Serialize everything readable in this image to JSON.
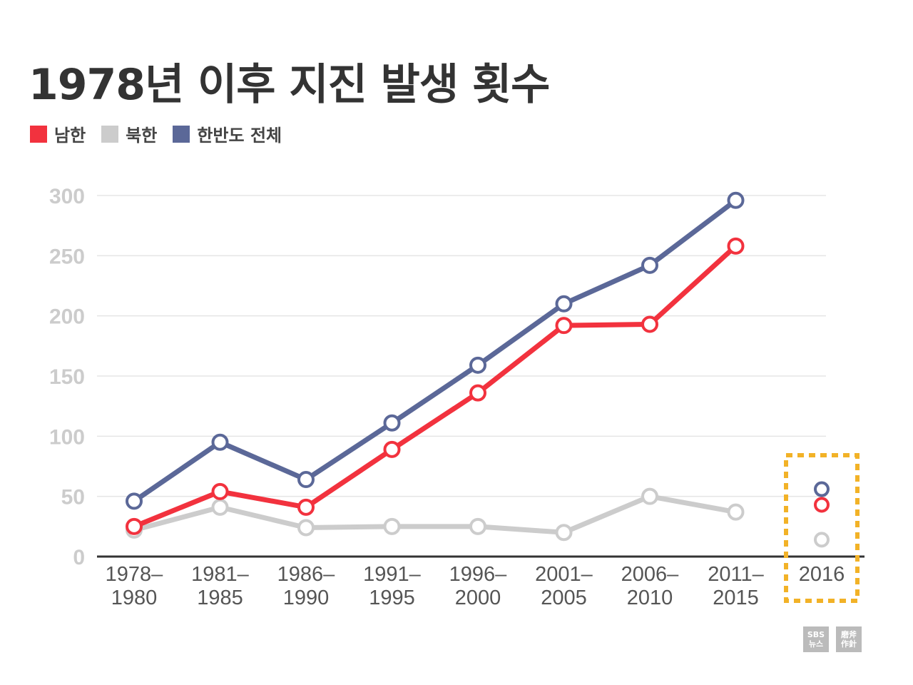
{
  "title": "1978년 이후 지진 발생 횟수",
  "colors": {
    "south": "#f2323e",
    "north": "#cccccc",
    "total": "#5b6898",
    "highlight": "#f2b227",
    "axis": "#333333",
    "grid": "#e5e5e5"
  },
  "legend": [
    {
      "label": "남한",
      "color": "#f2323e"
    },
    {
      "label": "북한",
      "color": "#cccccc"
    },
    {
      "label": "한반도 전체",
      "color": "#5b6898"
    }
  ],
  "chart_data": {
    "type": "line",
    "title": "1978년 이후 지진 발생 횟수",
    "categories": [
      "1978–\n1980",
      "1981–\n1985",
      "1986–\n1990",
      "1991–\n1995",
      "1996–\n2000",
      "2001–\n2005",
      "2006–\n2010",
      "2011–\n2015",
      "2016"
    ],
    "series": [
      {
        "name": "남한",
        "color": "#f2323e",
        "values": [
          25,
          54,
          41,
          89,
          136,
          192,
          193,
          258,
          null
        ]
      },
      {
        "name": "북한",
        "color": "#cccccc",
        "values": [
          22,
          41,
          24,
          25,
          25,
          20,
          50,
          37,
          null
        ]
      },
      {
        "name": "한반도 전체",
        "color": "#5b6898",
        "values": [
          46,
          95,
          64,
          111,
          159,
          210,
          242,
          296,
          null
        ]
      }
    ],
    "yticks": [
      0,
      50,
      100,
      150,
      200,
      250,
      300
    ],
    "ylim": [
      0,
      300
    ],
    "grid": true,
    "highlight_category": "2016",
    "highlight_markers": [
      {
        "series": "한반도 전체",
        "color": "#5b6898",
        "value": 56
      },
      {
        "series": "남한",
        "color": "#f2323e",
        "value": 43
      },
      {
        "series": "북한",
        "color": "#cccccc",
        "value": 14
      }
    ]
  },
  "logos": {
    "sbs": [
      "SBS",
      "뉴스"
    ],
    "mabu": [
      "磨斧",
      "作針"
    ]
  }
}
